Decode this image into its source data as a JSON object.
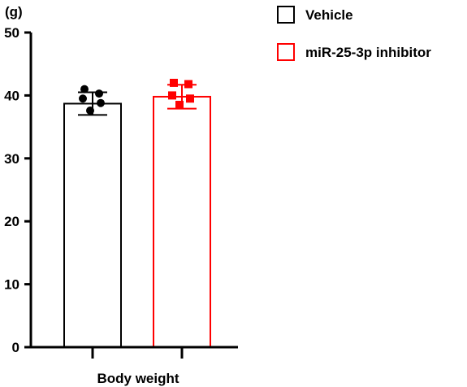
{
  "chart_data": {
    "type": "bar",
    "title": "",
    "ylabel": "(g)",
    "xlabel": "Body weight",
    "ylim": [
      0,
      50
    ],
    "yticks": [
      "0",
      "10",
      "20",
      "30",
      "40",
      "50"
    ],
    "legend_position": "top-right",
    "grid": false,
    "series": [
      {
        "name": "Vehicle",
        "color": "#000000",
        "marker": "circle",
        "mean": 38.7,
        "error": 1.8,
        "points": [
          41.0,
          40.3,
          39.5,
          38.8,
          37.6
        ]
      },
      {
        "name": "miR-25-3p inhibitor",
        "color": "#ff0000",
        "marker": "square",
        "mean": 39.8,
        "error": 1.9,
        "points": [
          42.0,
          41.8,
          40.0,
          39.5,
          38.5
        ]
      }
    ]
  }
}
